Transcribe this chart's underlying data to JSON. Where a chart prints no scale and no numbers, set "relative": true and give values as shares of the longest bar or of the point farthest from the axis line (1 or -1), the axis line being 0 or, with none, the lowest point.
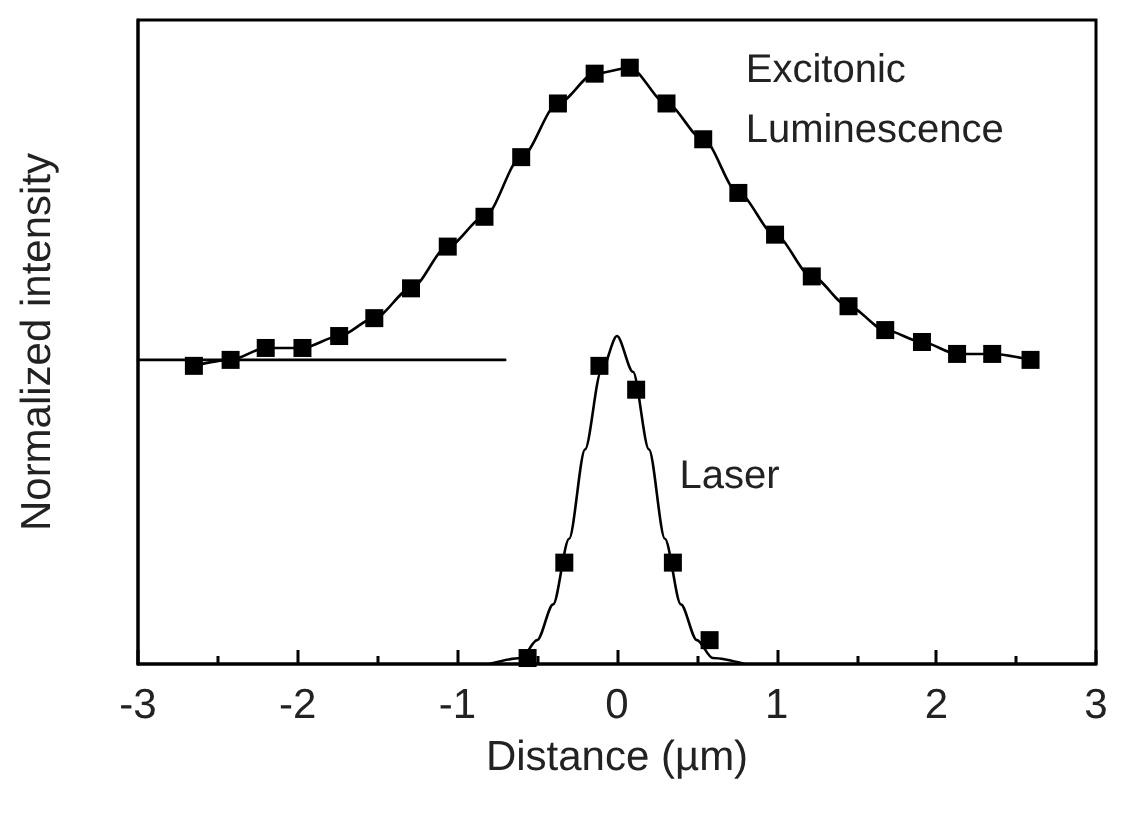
{
  "chart_data": {
    "type": "line",
    "xlabel": "Distance (µm)",
    "ylabel": "Normalized intensity",
    "relative": true,
    "xlim": [
      -3,
      3
    ],
    "xticks": [
      -3,
      -2,
      -1,
      0,
      1,
      2,
      3
    ],
    "grid": false,
    "legend": false,
    "series": [
      {
        "name": "Excitonic Luminescence",
        "color": "#000000",
        "marker": "square",
        "x": [
          -2.65,
          -2.42,
          -2.2,
          -1.97,
          -1.74,
          -1.52,
          -1.29,
          -1.06,
          -0.83,
          -0.6,
          -0.37,
          -0.14,
          0.08,
          0.31,
          0.54,
          0.76,
          0.99,
          1.22,
          1.45,
          1.68,
          1.91,
          2.13,
          2.35,
          2.59
        ],
        "values": [
          0.5,
          0.51,
          0.53,
          0.53,
          0.55,
          0.58,
          0.63,
          0.7,
          0.75,
          0.85,
          0.94,
          0.99,
          1,
          0.94,
          0.88,
          0.79,
          0.72,
          0.65,
          0.6,
          0.56,
          0.54,
          0.52,
          0.52,
          0.51
        ]
      },
      {
        "name": "Laser",
        "type": "scatter",
        "color": "#000000",
        "marker": "square",
        "x": [
          -0.56,
          -0.33,
          -0.11,
          0.12,
          0.35,
          0.58
        ],
        "values": [
          0.01,
          0.17,
          0.5,
          0.46,
          0.17,
          0.04
        ]
      },
      {
        "color": "#000000",
        "marker": "none",
        "x": [
          -0.8,
          -0.6,
          -0.5,
          -0.4,
          -0.3,
          -0.2,
          -0.1,
          0,
          0.1,
          0.2,
          0.3,
          0.4,
          0.5,
          0.6,
          0.8
        ],
        "values": [
          0,
          0.01,
          0.04,
          0.1,
          0.21,
          0.36,
          0.49,
          0.55,
          0.49,
          0.36,
          0.21,
          0.1,
          0.04,
          0.01,
          0
        ]
      },
      {
        "color": "#000000",
        "marker": "none",
        "x": [
          -3,
          -0.7
        ],
        "values": [
          0.51,
          0.51
        ]
      }
    ]
  }
}
